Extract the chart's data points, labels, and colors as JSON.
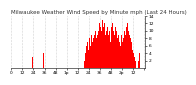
{
  "title": "Milwaukee Weather Wind Speed by Minute mph (Last 24 Hours)",
  "bar_color": "#ff0000",
  "background_color": "#ffffff",
  "plot_bg_color": "#ffffff",
  "ylim": [
    0,
    14
  ],
  "yticks": [
    2,
    4,
    6,
    8,
    10,
    12,
    14
  ],
  "wind_data": [
    0,
    0,
    0,
    0,
    0,
    0,
    0,
    0,
    0,
    0,
    0,
    0,
    0,
    0,
    0,
    0,
    0,
    2,
    0,
    0,
    0,
    0,
    0,
    3,
    0,
    0,
    0,
    0,
    0,
    0,
    0,
    0,
    0,
    0,
    0,
    4,
    0,
    0,
    0,
    0,
    0,
    0,
    0,
    0,
    0,
    0,
    0,
    0,
    0,
    0,
    0,
    0,
    0,
    0,
    0,
    0,
    0,
    0,
    0,
    0,
    0,
    0,
    0,
    0,
    0,
    0,
    0,
    0,
    0,
    0,
    0,
    0,
    0,
    0,
    0,
    0,
    0,
    0,
    0,
    2,
    0,
    4,
    6,
    7,
    5,
    8,
    6,
    9,
    7,
    8,
    9,
    10,
    8,
    11,
    9,
    10,
    12,
    11,
    10,
    13,
    11,
    12,
    9,
    10,
    11,
    8,
    9,
    10,
    7,
    11,
    12,
    10,
    9,
    11,
    10,
    8,
    9,
    7,
    8,
    6,
    9,
    7,
    8,
    10,
    9,
    11,
    12,
    10,
    9,
    8,
    7,
    6,
    5,
    4,
    3,
    2,
    0,
    0,
    2,
    4,
    0,
    0,
    0,
    2,
    0,
    0
  ],
  "xtick_positions": [
    0,
    12,
    24,
    36,
    48,
    60,
    72,
    84,
    96,
    108,
    120,
    132,
    144
  ],
  "xtick_labels": [
    "0",
    "12",
    "24",
    "36",
    "48",
    "1p",
    "12",
    "24",
    "36",
    "48",
    "2p",
    "12",
    ""
  ],
  "grid_color": "#aaaaaa",
  "title_fontsize": 4.0,
  "tick_fontsize": 3.2
}
